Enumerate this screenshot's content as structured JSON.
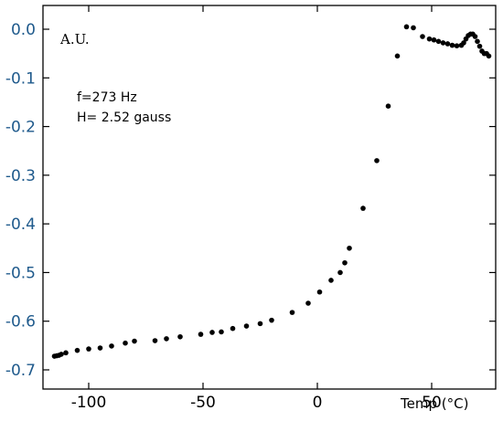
{
  "chart_data": {
    "type": "scatter",
    "title": "",
    "xlabel": "Temp (°C)",
    "ylabel": "A.U.",
    "xlim": [
      -120,
      78
    ],
    "ylim": [
      -0.7,
      0.02
    ],
    "xticks": [
      -100,
      -50,
      0,
      50
    ],
    "xtick_labels": [
      "-100",
      "-50",
      "0",
      "50"
    ],
    "yticks": [
      0.0,
      -0.1,
      -0.2,
      -0.3,
      -0.4,
      -0.5,
      -0.6,
      -0.7
    ],
    "ytick_labels": [
      "0.0",
      "-0.1",
      "-0.2",
      "-0.3",
      "-0.4",
      "-0.5",
      "-0.6",
      "-0.7"
    ],
    "grid": false,
    "annotations": [
      "f=273 Hz",
      "H= 2.52 gauss"
    ],
    "marker_color": "#000000",
    "tick_label_color": "#1f5a8c",
    "series": [
      {
        "x": [
          -115,
          -114,
          -113,
          -112,
          -110,
          -105,
          -100,
          -95,
          -90,
          -84,
          -80,
          -71,
          -66,
          -60,
          -51,
          -46,
          -42,
          -37,
          -31,
          -25,
          -20,
          -11,
          -4,
          1,
          6,
          10,
          12,
          14,
          20,
          26,
          31,
          35,
          39,
          42,
          46,
          49,
          51,
          53,
          55,
          57,
          59,
          61,
          63,
          64,
          65,
          66,
          67,
          68,
          69,
          70,
          71,
          72,
          73,
          74,
          75
        ],
        "y": [
          -0.672,
          -0.671,
          -0.67,
          -0.668,
          -0.665,
          -0.66,
          -0.657,
          -0.655,
          -0.651,
          -0.645,
          -0.641,
          -0.64,
          -0.636,
          -0.632,
          -0.627,
          -0.623,
          -0.622,
          -0.615,
          -0.61,
          -0.605,
          -0.598,
          -0.582,
          -0.563,
          -0.54,
          -0.516,
          -0.5,
          -0.48,
          -0.45,
          -0.368,
          -0.27,
          -0.158,
          -0.055,
          0.005,
          0.003,
          -0.015,
          -0.02,
          -0.022,
          -0.025,
          -0.028,
          -0.03,
          -0.033,
          -0.034,
          -0.033,
          -0.028,
          -0.02,
          -0.013,
          -0.01,
          -0.01,
          -0.015,
          -0.025,
          -0.035,
          -0.045,
          -0.05,
          -0.05,
          -0.055
        ]
      }
    ]
  }
}
